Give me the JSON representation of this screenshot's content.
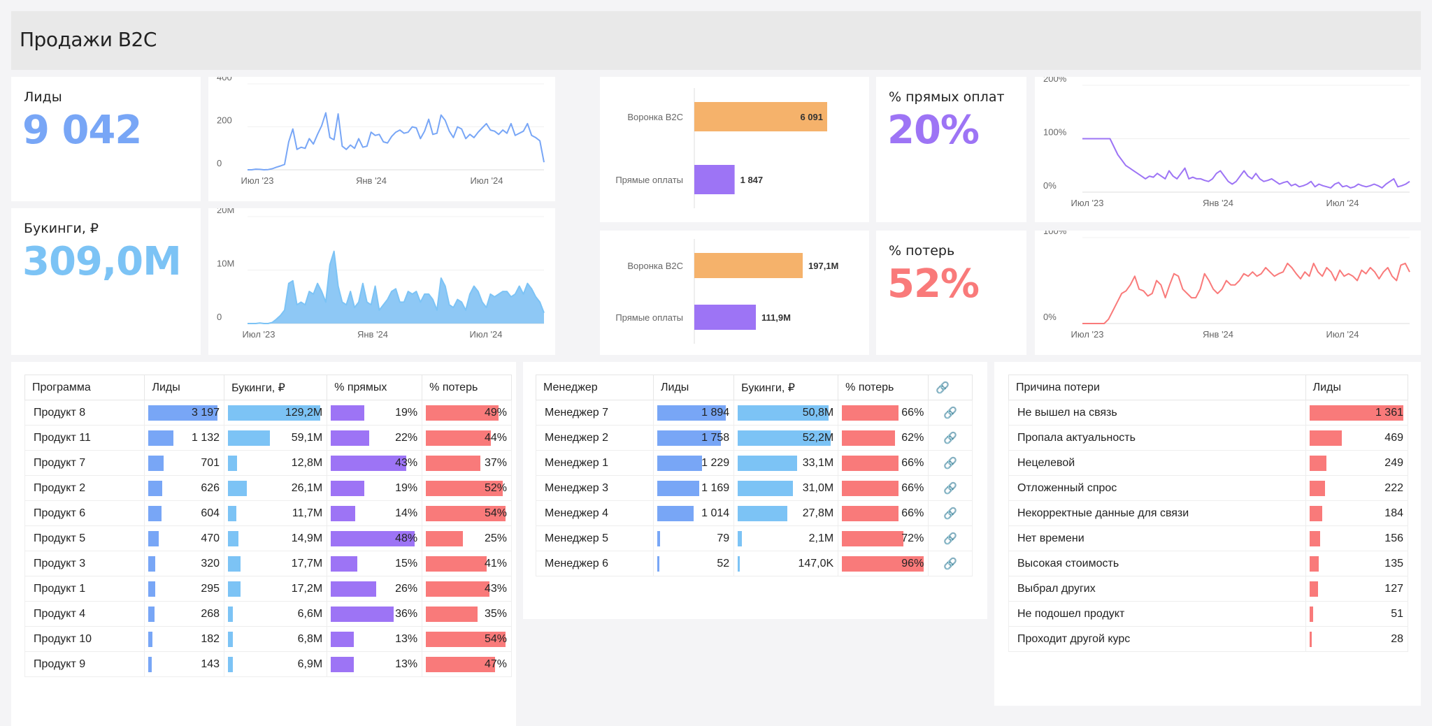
{
  "page": {
    "title": "Продажи B2C"
  },
  "colors": {
    "blue": "#78a6f6",
    "lightblue": "#7cc3f5",
    "purple": "#9d74f5",
    "red": "#f97a7a",
    "orange": "#f5b26b"
  },
  "kpis": {
    "leads": {
      "title": "Лиды",
      "value": "9 042"
    },
    "bookings": {
      "title": "Букинги, ₽",
      "value": "309,0M"
    },
    "direct": {
      "title": "% прямых оплат",
      "value": "20%"
    },
    "losses": {
      "title": "% потерь",
      "value": "52%"
    }
  },
  "chart_data": [
    {
      "id": "leads_trend",
      "type": "line",
      "x_ticks": [
        "Июл '23",
        "Янв '24",
        "Июл '24"
      ],
      "y_ticks": [
        "400",
        "200",
        "0"
      ],
      "ylim": [
        0,
        400
      ],
      "values": [
        0,
        0,
        3,
        2,
        0,
        1,
        5,
        12,
        18,
        25,
        130,
        190,
        95,
        105,
        100,
        145,
        120,
        165,
        205,
        265,
        150,
        140,
        260,
        110,
        95,
        115,
        100,
        145,
        105,
        110,
        175,
        160,
        165,
        130,
        125,
        155,
        175,
        185,
        170,
        175,
        200,
        195,
        145,
        180,
        235,
        165,
        170,
        255,
        230,
        180,
        150,
        200,
        190,
        145,
        165,
        150,
        175,
        195,
        215,
        185,
        180,
        165,
        185,
        170,
        215,
        160,
        170,
        180,
        215,
        160,
        150,
        135,
        35
      ]
    },
    {
      "id": "bookings_trend",
      "type": "area",
      "x_ticks": [
        "Июл '23",
        "Янв '24",
        "Июл '24"
      ],
      "y_ticks": [
        "20M",
        "10M",
        "0"
      ],
      "ylim": [
        0,
        20
      ],
      "values": [
        0,
        0,
        0,
        0.1,
        0,
        0,
        0.2,
        0.8,
        1.5,
        2.5,
        7.5,
        8,
        3.5,
        4,
        3.5,
        6,
        5.5,
        7.5,
        6,
        4,
        11,
        13.5,
        7,
        4,
        3.5,
        6,
        3,
        4,
        7.5,
        4,
        3.5,
        7,
        2.5,
        3.5,
        4.5,
        6,
        6.5,
        4,
        4,
        6,
        5.5,
        6,
        4,
        5.5,
        5.5,
        4.5,
        2.5,
        8.5,
        7,
        3.5,
        3,
        4.5,
        4,
        2.5,
        5.5,
        7,
        6,
        4,
        3,
        5.5,
        5,
        5.5,
        6,
        6,
        5,
        5.5,
        7,
        5.5,
        7.5,
        6.5,
        5,
        4,
        2
      ]
    },
    {
      "id": "direct_trend",
      "type": "line",
      "x_ticks": [
        "Июл '23",
        "Янв '24",
        "Июл '24"
      ],
      "y_ticks": [
        "200%",
        "100%",
        "0%"
      ],
      "ylim": [
        0,
        200
      ],
      "values": [
        100,
        100,
        100,
        100,
        100,
        100,
        100,
        100,
        85,
        70,
        60,
        50,
        45,
        40,
        35,
        30,
        25,
        30,
        28,
        35,
        30,
        25,
        40,
        30,
        25,
        35,
        45,
        25,
        28,
        25,
        25,
        22,
        20,
        25,
        35,
        40,
        30,
        20,
        15,
        20,
        30,
        40,
        30,
        25,
        35,
        25,
        20,
        22,
        25,
        20,
        15,
        18,
        20,
        12,
        15,
        10,
        12,
        15,
        20,
        10,
        15,
        12,
        10,
        8,
        15,
        18,
        10,
        12,
        8,
        10,
        15,
        12,
        10,
        12,
        15,
        12,
        8,
        15,
        20,
        25,
        10,
        12,
        15,
        20
      ]
    },
    {
      "id": "losses_trend",
      "type": "line",
      "x_ticks": [
        "Июл '23",
        "Янв '24",
        "Июл '24"
      ],
      "y_ticks": [
        "100%",
        "0%"
      ],
      "ylim": [
        0,
        100
      ],
      "values": [
        0,
        0,
        0,
        0,
        0,
        0,
        5,
        15,
        25,
        35,
        38,
        45,
        55,
        40,
        38,
        32,
        35,
        50,
        45,
        30,
        45,
        58,
        55,
        40,
        35,
        30,
        30,
        40,
        58,
        50,
        40,
        35,
        40,
        50,
        45,
        45,
        50,
        58,
        55,
        60,
        55,
        58,
        65,
        60,
        55,
        58,
        60,
        70,
        65,
        58,
        52,
        60,
        55,
        70,
        60,
        55,
        65,
        60,
        50,
        62,
        55,
        58,
        55,
        50,
        62,
        58,
        65,
        60,
        52,
        60,
        65,
        55,
        50,
        68,
        70,
        60
      ]
    },
    {
      "id": "funnel_count",
      "type": "bar",
      "orientation": "horizontal",
      "categories": [
        "Воронка B2C",
        "Прямые оплаты"
      ],
      "values": [
        6091,
        1847
      ],
      "labels": [
        "6 091",
        "1 847"
      ]
    },
    {
      "id": "funnel_sum",
      "type": "bar",
      "orientation": "horizontal",
      "categories": [
        "Воронка B2C",
        "Прямые оплаты"
      ],
      "values": [
        197.1,
        111.9
      ],
      "labels": [
        "197,1M",
        "111,9M"
      ]
    }
  ],
  "programs_table": {
    "headers": [
      "Программа",
      "Лиды",
      "Букинги, ₽",
      "% прямых",
      "% потерь"
    ],
    "rows": [
      {
        "name": "Продукт 8",
        "leads": "3 197",
        "leads_v": 3197,
        "book": "129,2M",
        "book_v": 129.2,
        "direct": "19%",
        "direct_v": 19,
        "loss": "49%",
        "loss_v": 49
      },
      {
        "name": "Продукт 11",
        "leads": "1 132",
        "leads_v": 1132,
        "book": "59,1M",
        "book_v": 59.1,
        "direct": "22%",
        "direct_v": 22,
        "loss": "44%",
        "loss_v": 44
      },
      {
        "name": "Продукт 7",
        "leads": "701",
        "leads_v": 701,
        "book": "12,8M",
        "book_v": 12.8,
        "direct": "43%",
        "direct_v": 43,
        "loss": "37%",
        "loss_v": 37
      },
      {
        "name": "Продукт 2",
        "leads": "626",
        "leads_v": 626,
        "book": "26,1M",
        "book_v": 26.1,
        "direct": "19%",
        "direct_v": 19,
        "loss": "52%",
        "loss_v": 52
      },
      {
        "name": "Продукт 6",
        "leads": "604",
        "leads_v": 604,
        "book": "11,7M",
        "book_v": 11.7,
        "direct": "14%",
        "direct_v": 14,
        "loss": "54%",
        "loss_v": 54
      },
      {
        "name": "Продукт 5",
        "leads": "470",
        "leads_v": 470,
        "book": "14,9M",
        "book_v": 14.9,
        "direct": "48%",
        "direct_v": 48,
        "loss": "25%",
        "loss_v": 25
      },
      {
        "name": "Продукт 3",
        "leads": "320",
        "leads_v": 320,
        "book": "17,7M",
        "book_v": 17.7,
        "direct": "15%",
        "direct_v": 15,
        "loss": "41%",
        "loss_v": 41
      },
      {
        "name": "Продукт 1",
        "leads": "295",
        "leads_v": 295,
        "book": "17,2M",
        "book_v": 17.2,
        "direct": "26%",
        "direct_v": 26,
        "loss": "43%",
        "loss_v": 43
      },
      {
        "name": "Продукт 4",
        "leads": "268",
        "leads_v": 268,
        "book": "6,6M",
        "book_v": 6.6,
        "direct": "36%",
        "direct_v": 36,
        "loss": "35%",
        "loss_v": 35
      },
      {
        "name": "Продукт 10",
        "leads": "182",
        "leads_v": 182,
        "book": "6,8M",
        "book_v": 6.8,
        "direct": "13%",
        "direct_v": 13,
        "loss": "54%",
        "loss_v": 54
      },
      {
        "name": "Продукт 9",
        "leads": "143",
        "leads_v": 143,
        "book": "6,9M",
        "book_v": 6.9,
        "direct": "13%",
        "direct_v": 13,
        "loss": "47%",
        "loss_v": 47
      }
    ]
  },
  "managers_table": {
    "headers": [
      "Менеджер",
      "Лиды",
      "Букинги, ₽",
      "% потерь"
    ],
    "link_icon": "link-icon",
    "rows": [
      {
        "name": "Менеджер 7",
        "leads": "1 894",
        "leads_v": 1894,
        "book": "50,8M",
        "book_v": 50.8,
        "loss": "66%",
        "loss_v": 66
      },
      {
        "name": "Менеджер 2",
        "leads": "1 758",
        "leads_v": 1758,
        "book": "52,2M",
        "book_v": 52.2,
        "loss": "62%",
        "loss_v": 62
      },
      {
        "name": "Менеджер 1",
        "leads": "1 229",
        "leads_v": 1229,
        "book": "33,1M",
        "book_v": 33.1,
        "loss": "66%",
        "loss_v": 66
      },
      {
        "name": "Менеджер 3",
        "leads": "1 169",
        "leads_v": 1169,
        "book": "31,0M",
        "book_v": 31.0,
        "loss": "66%",
        "loss_v": 66
      },
      {
        "name": "Менеджер 4",
        "leads": "1 014",
        "leads_v": 1014,
        "book": "27,8M",
        "book_v": 27.8,
        "loss": "66%",
        "loss_v": 66
      },
      {
        "name": "Менеджер 5",
        "leads": "79",
        "leads_v": 79,
        "book": "2,1M",
        "book_v": 2.1,
        "loss": "72%",
        "loss_v": 72
      },
      {
        "name": "Менеджер 6",
        "leads": "52",
        "leads_v": 52,
        "book": "147,0K",
        "book_v": 0.147,
        "loss": "96%",
        "loss_v": 96
      }
    ]
  },
  "reasons_table": {
    "headers": [
      "Причина потери",
      "Лиды"
    ],
    "rows": [
      {
        "name": "Не вышел на связь",
        "leads": "1 361",
        "leads_v": 1361
      },
      {
        "name": "Пропала актуальность",
        "leads": "469",
        "leads_v": 469
      },
      {
        "name": "Нецелевой",
        "leads": "249",
        "leads_v": 249
      },
      {
        "name": "Отложенный спрос",
        "leads": "222",
        "leads_v": 222
      },
      {
        "name": "Некорректные данные для связи",
        "leads": "184",
        "leads_v": 184
      },
      {
        "name": "Нет времени",
        "leads": "156",
        "leads_v": 156
      },
      {
        "name": "Высокая стоимость",
        "leads": "135",
        "leads_v": 135
      },
      {
        "name": "Выбрал других",
        "leads": "127",
        "leads_v": 127
      },
      {
        "name": "Не подошел продукт",
        "leads": "51",
        "leads_v": 51
      },
      {
        "name": "Проходит другой курс",
        "leads": "28",
        "leads_v": 28
      }
    ]
  }
}
